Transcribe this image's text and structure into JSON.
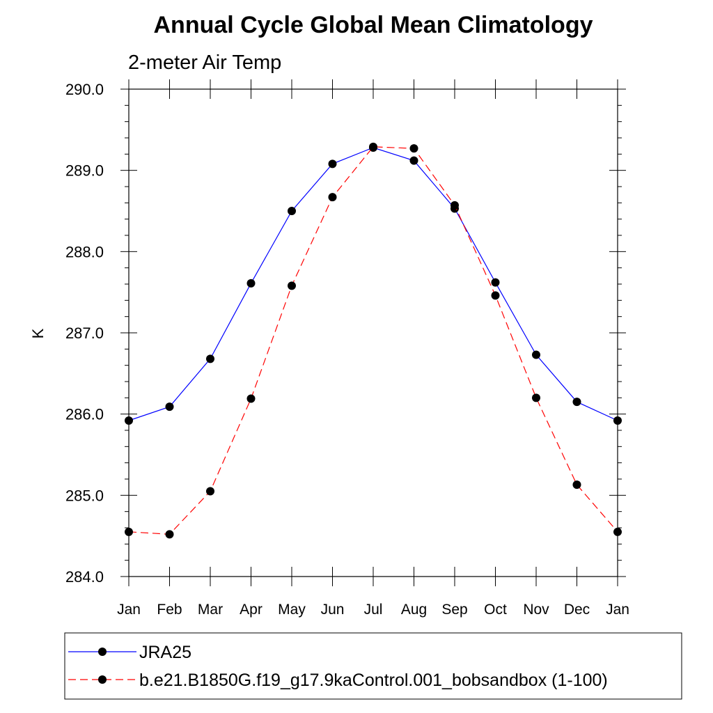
{
  "chart_data": {
    "type": "line",
    "title": "Annual Cycle Global Mean Climatology",
    "subtitle": "2-meter Air Temp",
    "xlabel": "",
    "ylabel": "K",
    "categories": [
      "Jan",
      "Feb",
      "Mar",
      "Apr",
      "May",
      "Jun",
      "Jul",
      "Aug",
      "Sep",
      "Oct",
      "Nov",
      "Dec",
      "Jan"
    ],
    "ylim": [
      284.0,
      290.0
    ],
    "yticks": [
      "284.0",
      "285.0",
      "286.0",
      "287.0",
      "288.0",
      "289.0",
      "290.0"
    ],
    "grid": false,
    "legend_position": "bottom",
    "series": [
      {
        "name": "JRA25",
        "color": "#0000ff",
        "line_style": "solid",
        "marker": "filled-circle",
        "values": [
          285.92,
          286.09,
          286.68,
          287.61,
          288.5,
          289.08,
          289.28,
          289.12,
          288.53,
          287.62,
          286.73,
          286.15,
          285.92
        ]
      },
      {
        "name": "b.e21.B1850G.f19_g17.9kaControl.001_bobsandbox (1-100)",
        "color": "#ff0000",
        "line_style": "dashed",
        "marker": "filled-circle",
        "values": [
          284.55,
          284.52,
          285.05,
          286.19,
          287.58,
          288.67,
          289.29,
          289.27,
          288.57,
          287.46,
          286.2,
          285.13,
          284.55
        ]
      }
    ]
  }
}
